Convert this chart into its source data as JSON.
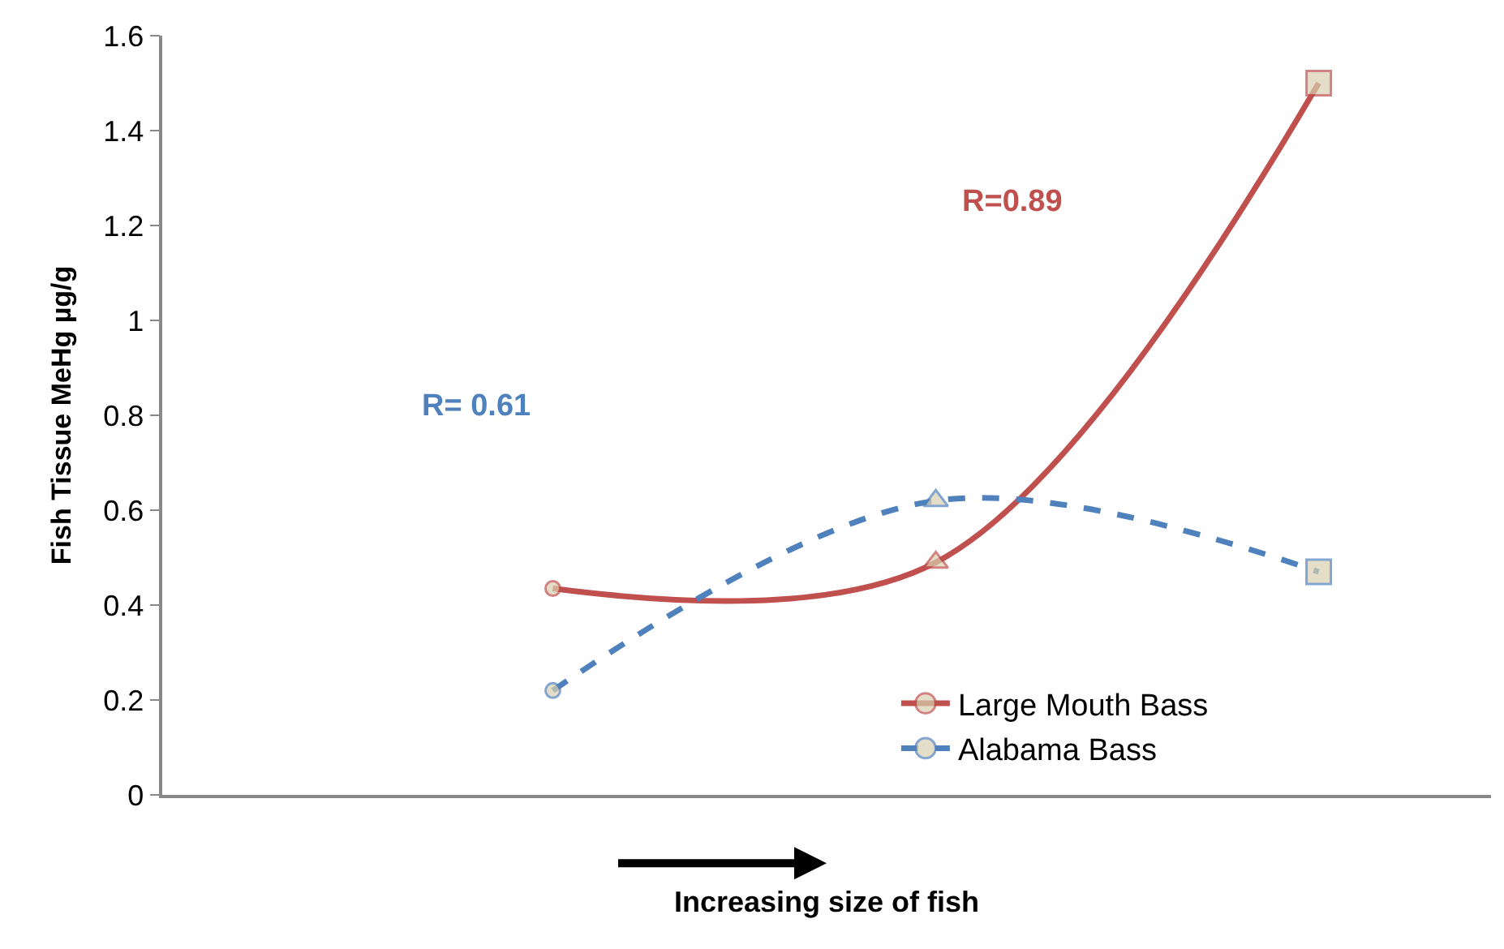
{
  "chart_data": {
    "type": "line",
    "xlabel": "Increasing size of fish",
    "ylabel": "Fish Tissue MeHg µg/g",
    "categories": [
      null,
      null,
      null
    ],
    "series": [
      {
        "name": "Large Mouth Bass",
        "color": "#c0504d",
        "values": [
          0.435,
          0.49,
          1.5
        ],
        "line_style": "solid"
      },
      {
        "name": "Alabama Bass",
        "color": "#4f81bd",
        "values": [
          0.22,
          0.62,
          0.47
        ],
        "line_style": "dashed"
      }
    ],
    "marker": [
      "circle",
      "triangle",
      "square"
    ],
    "annotations": [
      "R=0.89",
      "R= 0.61"
    ],
    "ylim": [
      0,
      1.6
    ],
    "yticks": [
      0,
      0.2,
      0.4,
      0.6,
      0.8,
      1,
      1.2,
      1.4,
      1.6
    ],
    "legend": "bottom right"
  }
}
